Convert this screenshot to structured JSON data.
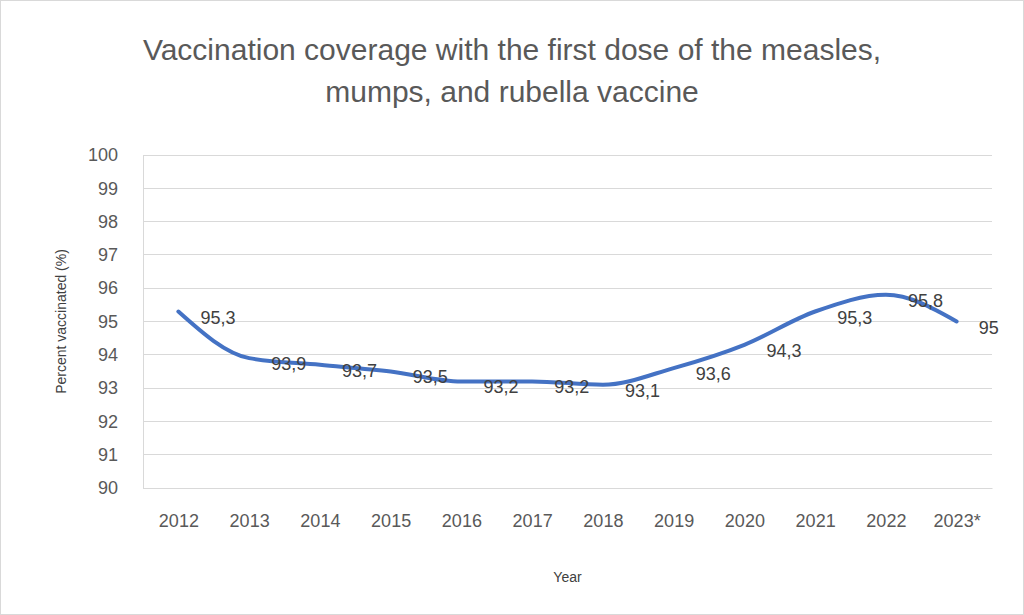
{
  "chart_data": {
    "type": "line",
    "title": "Vaccination coverage with the first dose of the measles, mumps, and rubella vaccine",
    "x_label": "Year",
    "y_label": "Percent vaccinated (%)",
    "categories": [
      "2012",
      "2013",
      "2014",
      "2015",
      "2016",
      "2017",
      "2018",
      "2019",
      "2020",
      "2021",
      "2022",
      "2023*"
    ],
    "values": [
      95.3,
      93.9,
      93.7,
      93.5,
      93.2,
      93.2,
      93.1,
      93.6,
      94.3,
      95.3,
      95.8,
      95
    ],
    "value_labels": [
      "95,3",
      "93,9",
      "93,7",
      "93,5",
      "93,2",
      "93,2",
      "93,1",
      "93,6",
      "94,3",
      "95,3",
      "95,8",
      "95"
    ],
    "color": "#4472c4",
    "ylim": [
      90,
      100
    ],
    "yticks": [
      90,
      91,
      92,
      93,
      94,
      95,
      96,
      97,
      98,
      99,
      100
    ],
    "grid": true,
    "data_labels": true
  }
}
